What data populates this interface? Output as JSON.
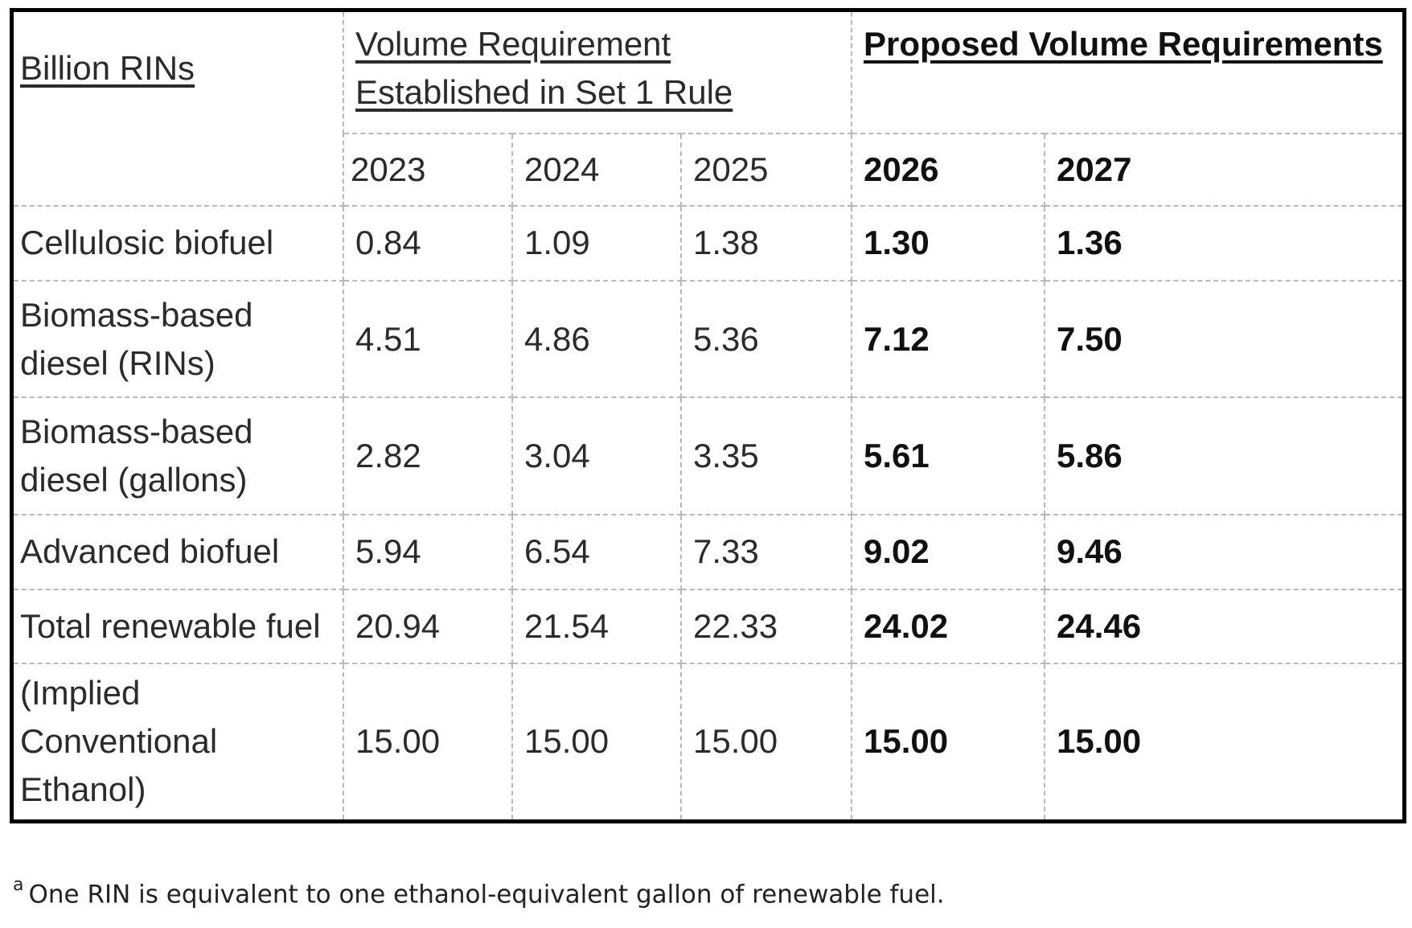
{
  "table": {
    "unit_header": "Billion RINs",
    "group_established": "Volume Requirement Established in Set 1 Rule",
    "group_proposed": "Proposed Volume Requirements",
    "years": [
      "2023",
      "2024",
      "2025",
      "2026",
      "2027"
    ],
    "rows": [
      {
        "label": "Cellulosic biofuel",
        "values": [
          "0.84",
          "1.09",
          "1.38",
          "1.30",
          "1.36"
        ]
      },
      {
        "label": "Biomass-based diesel (RINs)",
        "values": [
          "4.51",
          "4.86",
          "5.36",
          "7.12",
          "7.50"
        ]
      },
      {
        "label": "Biomass-based diesel (gallons)",
        "values": [
          "2.82",
          "3.04",
          "3.35",
          "5.61",
          "5.86"
        ]
      },
      {
        "label": "Advanced biofuel",
        "values": [
          "5.94",
          "6.54",
          "7.33",
          "9.02",
          "9.46"
        ]
      },
      {
        "label": "Total renewable fuel",
        "values": [
          "20.94",
          "21.54",
          "22.33",
          "24.02",
          "24.46"
        ]
      },
      {
        "label": "(Implied Conventional Ethanol)",
        "values": [
          "15.00",
          "15.00",
          "15.00",
          "15.00",
          "15.00"
        ]
      }
    ]
  },
  "footnote": {
    "marker": "a",
    "text": "One RIN is equivalent to one ethanol-equivalent gallon of renewable fuel."
  }
}
